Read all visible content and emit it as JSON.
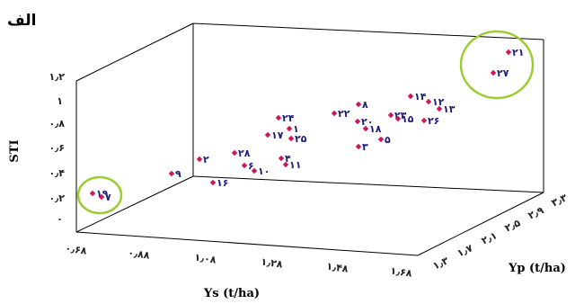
{
  "chart_data": {
    "type": "scatter",
    "panel_label": "الف",
    "xlabel": "Ys (t/ha)",
    "ylabel": "STI",
    "zlabel": "Yp (t/ha)",
    "x_ticks": [
      "۰٫۶۸",
      "۰٫۸۸",
      "۱٫۰۸",
      "۱٫۲۸",
      "۱٫۴۸",
      "۱٫۶۸"
    ],
    "y_ticks": [
      "۰",
      "۰٫۲",
      "۰٫۴",
      "۰٫۶",
      "۰٫۸",
      "۱",
      "۱٫۲"
    ],
    "z_ticks": [
      "۱٫۳",
      "۱٫۷",
      "۲٫۱",
      "۲٫۵",
      "۲٫۹",
      "۳٫۳"
    ],
    "points": [
      {
        "label": "۲۱",
        "u": 566,
        "v": 58
      },
      {
        "label": "۲۷",
        "u": 549,
        "v": 81
      },
      {
        "label": "۱۴",
        "u": 457,
        "v": 107
      },
      {
        "label": "۱۲",
        "u": 477,
        "v": 113
      },
      {
        "label": "۱۳",
        "u": 489,
        "v": 121
      },
      {
        "label": "۸",
        "u": 399,
        "v": 116
      },
      {
        "label": "۲۲",
        "u": 372,
        "v": 126
      },
      {
        "label": "۲۳",
        "u": 435,
        "v": 128
      },
      {
        "label": "۱۵",
        "u": 443,
        "v": 132
      },
      {
        "label": "۲۶",
        "u": 472,
        "v": 134
      },
      {
        "label": "۲۰",
        "u": 398,
        "v": 135
      },
      {
        "label": "۱۸",
        "u": 407,
        "v": 143
      },
      {
        "label": "۵",
        "u": 424,
        "v": 155
      },
      {
        "label": "۳",
        "u": 399,
        "v": 163
      },
      {
        "label": "۲۴",
        "u": 310,
        "v": 131
      },
      {
        "label": "۱",
        "u": 322,
        "v": 143
      },
      {
        "label": "۱۷",
        "u": 298,
        "v": 150
      },
      {
        "label": "۲۵",
        "u": 324,
        "v": 154
      },
      {
        "label": "۲۸",
        "u": 261,
        "v": 170
      },
      {
        "label": "۴",
        "u": 313,
        "v": 176
      },
      {
        "label": "۱۱",
        "u": 318,
        "v": 183
      },
      {
        "label": "۶",
        "u": 272,
        "v": 184
      },
      {
        "label": "۱۰",
        "u": 283,
        "v": 190
      },
      {
        "label": "۲",
        "u": 222,
        "v": 177
      },
      {
        "label": "۹",
        "u": 191,
        "v": 193
      },
      {
        "label": "۱۶",
        "u": 237,
        "v": 203
      },
      {
        "label": "۱۹",
        "u": 103,
        "v": 215
      },
      {
        "label": "۷",
        "u": 113,
        "v": 219
      }
    ]
  }
}
